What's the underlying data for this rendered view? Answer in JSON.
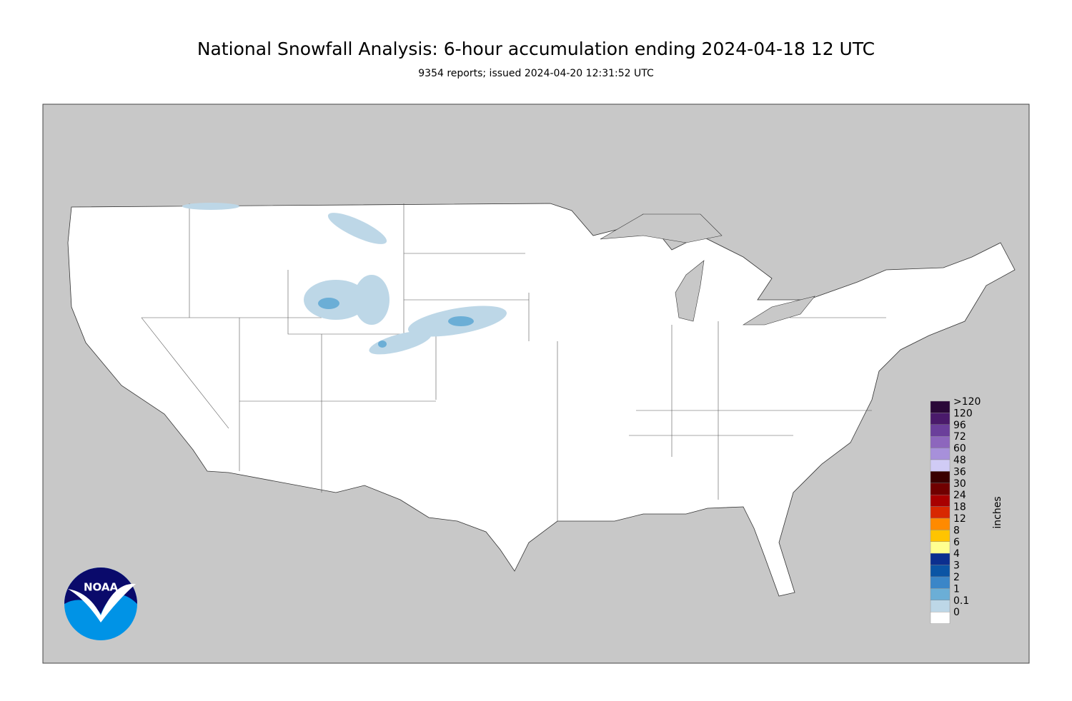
{
  "header": {
    "title": "National Snowfall Analysis: 6-hour accumulation ending 2024-04-18 12 UTC",
    "subtitle": "9354 reports; issued 2024-04-20 12:31:52 UTC"
  },
  "legend": {
    "unit": "inches",
    "items": [
      {
        "label": ">120",
        "color": "#2a0838"
      },
      {
        "label": "120",
        "color": "#4a1a6b"
      },
      {
        "label": "96",
        "color": "#6b3f9b"
      },
      {
        "label": "72",
        "color": "#8d66bd"
      },
      {
        "label": "60",
        "color": "#a790da"
      },
      {
        "label": "48",
        "color": "#d0cbf5"
      },
      {
        "label": "36",
        "color": "#3a0000"
      },
      {
        "label": "30",
        "color": "#700000"
      },
      {
        "label": "24",
        "color": "#a80000"
      },
      {
        "label": "18",
        "color": "#d82800"
      },
      {
        "label": "12",
        "color": "#ff8a00"
      },
      {
        "label": "8",
        "color": "#ffc400"
      },
      {
        "label": "6",
        "color": "#ffff90"
      },
      {
        "label": "4",
        "color": "#0c2f8f"
      },
      {
        "label": "3",
        "color": "#0b55a5"
      },
      {
        "label": "2",
        "color": "#3a86c8"
      },
      {
        "label": "1",
        "color": "#6baed6"
      },
      {
        "label": "0.1",
        "color": "#bdd7e7"
      },
      {
        "label": "0",
        "color": "#ffffff"
      }
    ]
  },
  "logo": {
    "text": "NOAA"
  }
}
